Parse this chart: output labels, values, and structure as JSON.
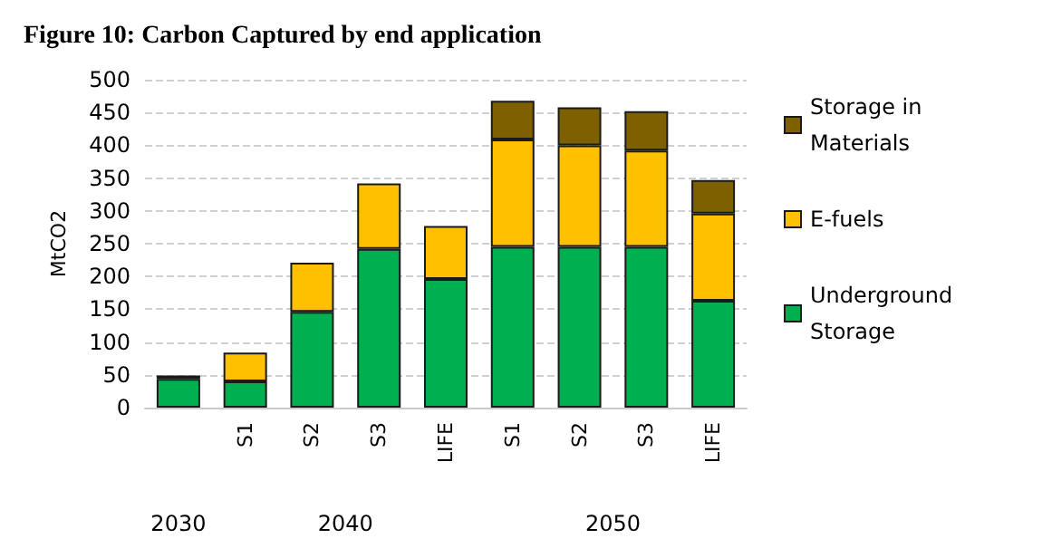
{
  "chart_data": {
    "type": "bar",
    "title": "Figure 10: Carbon Captured by end application",
    "categories": [
      null,
      "S1",
      "S2",
      "S3",
      "LIFE",
      "S1",
      "S2",
      "S3",
      "LIFE"
    ],
    "annotations": [
      "2030",
      "2040",
      "2050"
    ],
    "ylabel": "MtCO2",
    "stacked": true,
    "ylim": [
      0,
      500
    ],
    "yticks": [
      0,
      50,
      100,
      150,
      200,
      250,
      300,
      350,
      400,
      450,
      500
    ],
    "grid": "y",
    "legend": "right",
    "series": [
      {
        "name": "Underground Storage",
        "color": "#00b050",
        "values": [
          44,
          40,
          146,
          242,
          196,
          245,
          245,
          245,
          163
        ]
      },
      {
        "name": "E-fuels",
        "color": "#ffc000",
        "values": [
          5,
          44,
          75,
          100,
          81,
          164,
          155,
          147,
          133
        ]
      },
      {
        "name": "Storage in Materials",
        "color": "#7f6000",
        "values": [
          null,
          null,
          null,
          null,
          null,
          59,
          58,
          60,
          51
        ]
      }
    ]
  }
}
